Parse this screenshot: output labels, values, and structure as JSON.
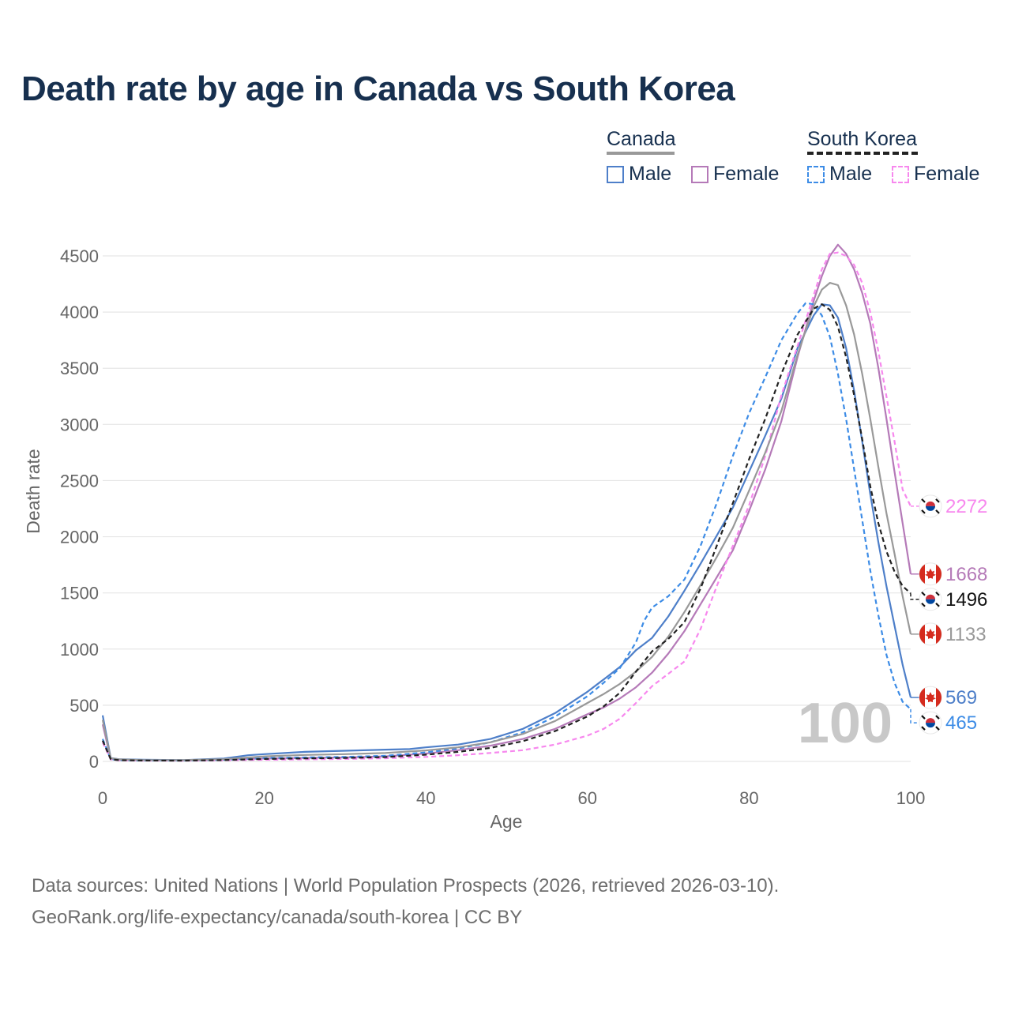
{
  "title": "Death rate by age in Canada vs South Korea",
  "legend": {
    "groups": [
      {
        "name": "Canada",
        "line_color": "#999999",
        "dashed": false
      },
      {
        "name": "South Korea",
        "line_color": "#222222",
        "dashed": true
      }
    ],
    "items": [
      {
        "label": "Male",
        "color": "#4e7fc9",
        "dashed": false
      },
      {
        "label": "Female",
        "color": "#b57ab8",
        "dashed": false
      },
      {
        "label": "Male",
        "color": "#3d8ce6",
        "dashed": true
      },
      {
        "label": "Female",
        "color": "#f788ee",
        "dashed": true
      }
    ]
  },
  "watermark": "100",
  "footer": {
    "line1": "Data sources: United Nations | World Population Prospects (2026, retrieved 2026-03-10).",
    "line2": "GeoRank.org/life-expectancy/canada/south-korea | CC BY"
  },
  "chart_data": {
    "type": "line",
    "xlabel": "Age",
    "ylabel": "Death rate",
    "xlim": [
      0,
      100
    ],
    "ylim": [
      0,
      4500
    ],
    "xticks": [
      "0",
      "20",
      "40",
      "60",
      "80",
      "100"
    ],
    "yticks": [
      "0",
      "500",
      "1000",
      "1500",
      "2000",
      "2500",
      "3000",
      "3500",
      "4000",
      "4500"
    ],
    "grid": true,
    "series": [
      {
        "name": "Canada Male",
        "color": "#4e7fc9",
        "dashed": false,
        "flag": "canada-flag",
        "end_label": "569",
        "points": [
          [
            0,
            410
          ],
          [
            1,
            30
          ],
          [
            2,
            20
          ],
          [
            5,
            15
          ],
          [
            10,
            12
          ],
          [
            15,
            25
          ],
          [
            18,
            55
          ],
          [
            20,
            65
          ],
          [
            25,
            85
          ],
          [
            30,
            95
          ],
          [
            35,
            105
          ],
          [
            38,
            110
          ],
          [
            40,
            125
          ],
          [
            44,
            150
          ],
          [
            48,
            200
          ],
          [
            52,
            290
          ],
          [
            56,
            430
          ],
          [
            60,
            620
          ],
          [
            62,
            730
          ],
          [
            64,
            840
          ],
          [
            66,
            990
          ],
          [
            68,
            1100
          ],
          [
            70,
            1290
          ],
          [
            72,
            1520
          ],
          [
            74,
            1760
          ],
          [
            76,
            2010
          ],
          [
            78,
            2260
          ],
          [
            80,
            2580
          ],
          [
            82,
            2900
          ],
          [
            84,
            3230
          ],
          [
            85,
            3450
          ],
          [
            86,
            3680
          ],
          [
            88,
            3970
          ],
          [
            89,
            4070
          ],
          [
            90,
            4060
          ],
          [
            91,
            3950
          ],
          [
            92,
            3680
          ],
          [
            93,
            3300
          ],
          [
            94,
            2850
          ],
          [
            95,
            2380
          ],
          [
            96,
            1950
          ],
          [
            97,
            1560
          ],
          [
            98,
            1210
          ],
          [
            99,
            860
          ],
          [
            100,
            569
          ]
        ]
      },
      {
        "name": "Canada Female",
        "color": "#b57ab8",
        "dashed": false,
        "flag": "canada-flag",
        "end_label": "1668",
        "points": [
          [
            0,
            330
          ],
          [
            1,
            25
          ],
          [
            2,
            15
          ],
          [
            5,
            10
          ],
          [
            10,
            10
          ],
          [
            15,
            15
          ],
          [
            20,
            25
          ],
          [
            25,
            30
          ],
          [
            30,
            35
          ],
          [
            35,
            45
          ],
          [
            40,
            70
          ],
          [
            44,
            100
          ],
          [
            48,
            140
          ],
          [
            52,
            200
          ],
          [
            56,
            290
          ],
          [
            60,
            420
          ],
          [
            62,
            480
          ],
          [
            64,
            560
          ],
          [
            66,
            660
          ],
          [
            68,
            790
          ],
          [
            70,
            960
          ],
          [
            72,
            1160
          ],
          [
            74,
            1400
          ],
          [
            76,
            1640
          ],
          [
            78,
            1880
          ],
          [
            80,
            2230
          ],
          [
            82,
            2600
          ],
          [
            84,
            3030
          ],
          [
            86,
            3600
          ],
          [
            88,
            4100
          ],
          [
            89,
            4320
          ],
          [
            90,
            4500
          ],
          [
            91,
            4600
          ],
          [
            92,
            4520
          ],
          [
            93,
            4380
          ],
          [
            94,
            4170
          ],
          [
            95,
            3900
          ],
          [
            96,
            3500
          ],
          [
            97,
            3050
          ],
          [
            98,
            2580
          ],
          [
            99,
            2120
          ],
          [
            100,
            1668
          ]
        ]
      },
      {
        "name": "South Korea Male",
        "color": "#3d8ce6",
        "dashed": true,
        "flag": "south-korea-flag",
        "end_label": "465",
        "points": [
          [
            0,
            200
          ],
          [
            1,
            20
          ],
          [
            2,
            12
          ],
          [
            5,
            8
          ],
          [
            10,
            8
          ],
          [
            15,
            15
          ],
          [
            20,
            30
          ],
          [
            25,
            35
          ],
          [
            30,
            40
          ],
          [
            35,
            50
          ],
          [
            40,
            80
          ],
          [
            44,
            115
          ],
          [
            48,
            170
          ],
          [
            52,
            260
          ],
          [
            56,
            400
          ],
          [
            60,
            580
          ],
          [
            62,
            700
          ],
          [
            64,
            830
          ],
          [
            66,
            1060
          ],
          [
            67,
            1250
          ],
          [
            68,
            1370
          ],
          [
            70,
            1470
          ],
          [
            72,
            1620
          ],
          [
            74,
            1920
          ],
          [
            76,
            2300
          ],
          [
            78,
            2720
          ],
          [
            80,
            3100
          ],
          [
            82,
            3420
          ],
          [
            84,
            3750
          ],
          [
            86,
            3990
          ],
          [
            87,
            4080
          ],
          [
            88,
            4070
          ],
          [
            89,
            3970
          ],
          [
            90,
            3780
          ],
          [
            91,
            3450
          ],
          [
            92,
            3050
          ],
          [
            93,
            2600
          ],
          [
            94,
            2150
          ],
          [
            95,
            1700
          ],
          [
            96,
            1300
          ],
          [
            97,
            950
          ],
          [
            98,
            700
          ],
          [
            99,
            530
          ],
          [
            100,
            465
          ]
        ]
      },
      {
        "name": "South Korea Female",
        "color": "#f788ee",
        "dashed": true,
        "flag": "south-korea-flag",
        "end_label": "2272",
        "points": [
          [
            0,
            170
          ],
          [
            1,
            18
          ],
          [
            2,
            10
          ],
          [
            5,
            7
          ],
          [
            10,
            6
          ],
          [
            15,
            10
          ],
          [
            20,
            15
          ],
          [
            25,
            18
          ],
          [
            30,
            22
          ],
          [
            35,
            28
          ],
          [
            40,
            40
          ],
          [
            44,
            55
          ],
          [
            48,
            75
          ],
          [
            52,
            100
          ],
          [
            56,
            150
          ],
          [
            60,
            230
          ],
          [
            62,
            290
          ],
          [
            64,
            380
          ],
          [
            66,
            520
          ],
          [
            68,
            670
          ],
          [
            70,
            780
          ],
          [
            72,
            890
          ],
          [
            74,
            1180
          ],
          [
            76,
            1560
          ],
          [
            78,
            1920
          ],
          [
            80,
            2280
          ],
          [
            82,
            2720
          ],
          [
            84,
            3260
          ],
          [
            86,
            3700
          ],
          [
            88,
            4150
          ],
          [
            89,
            4380
          ],
          [
            90,
            4520
          ],
          [
            91,
            4530
          ],
          [
            92,
            4500
          ],
          [
            93,
            4420
          ],
          [
            94,
            4260
          ],
          [
            95,
            4000
          ],
          [
            96,
            3650
          ],
          [
            97,
            3250
          ],
          [
            98,
            2850
          ],
          [
            99,
            2420
          ],
          [
            100,
            2272
          ]
        ]
      },
      {
        "name": "Canada Total",
        "color": "#999999",
        "dashed": false,
        "flag": "canada-flag",
        "end_label": "1133",
        "points": [
          [
            0,
            370
          ],
          [
            1,
            28
          ],
          [
            2,
            18
          ],
          [
            5,
            12
          ],
          [
            10,
            11
          ],
          [
            15,
            20
          ],
          [
            20,
            45
          ],
          [
            25,
            58
          ],
          [
            30,
            65
          ],
          [
            35,
            75
          ],
          [
            40,
            98
          ],
          [
            44,
            125
          ],
          [
            48,
            170
          ],
          [
            52,
            245
          ],
          [
            56,
            360
          ],
          [
            60,
            520
          ],
          [
            62,
            600
          ],
          [
            64,
            690
          ],
          [
            66,
            800
          ],
          [
            68,
            930
          ],
          [
            70,
            1110
          ],
          [
            72,
            1330
          ],
          [
            74,
            1570
          ],
          [
            76,
            1820
          ],
          [
            78,
            2080
          ],
          [
            80,
            2410
          ],
          [
            82,
            2750
          ],
          [
            84,
            3120
          ],
          [
            86,
            3620
          ],
          [
            88,
            4050
          ],
          [
            89,
            4200
          ],
          [
            90,
            4260
          ],
          [
            91,
            4240
          ],
          [
            92,
            4060
          ],
          [
            93,
            3800
          ],
          [
            94,
            3450
          ],
          [
            95,
            3050
          ],
          [
            96,
            2620
          ],
          [
            97,
            2210
          ],
          [
            98,
            1850
          ],
          [
            99,
            1470
          ],
          [
            100,
            1133
          ]
        ]
      },
      {
        "name": "South Korea Total",
        "color": "#222222",
        "dashed": true,
        "flag": "south-korea-flag",
        "end_label": "1496",
        "points": [
          [
            0,
            185
          ],
          [
            1,
            19
          ],
          [
            2,
            11
          ],
          [
            5,
            8
          ],
          [
            10,
            7
          ],
          [
            15,
            12
          ],
          [
            20,
            22
          ],
          [
            25,
            27
          ],
          [
            30,
            31
          ],
          [
            35,
            39
          ],
          [
            40,
            60
          ],
          [
            44,
            85
          ],
          [
            48,
            120
          ],
          [
            52,
            180
          ],
          [
            56,
            270
          ],
          [
            60,
            400
          ],
          [
            62,
            490
          ],
          [
            64,
            610
          ],
          [
            66,
            800
          ],
          [
            68,
            980
          ],
          [
            70,
            1090
          ],
          [
            72,
            1240
          ],
          [
            74,
            1540
          ],
          [
            76,
            1920
          ],
          [
            78,
            2300
          ],
          [
            80,
            2690
          ],
          [
            82,
            3050
          ],
          [
            84,
            3450
          ],
          [
            86,
            3800
          ],
          [
            88,
            4030
          ],
          [
            89,
            4070
          ],
          [
            90,
            4020
          ],
          [
            91,
            3870
          ],
          [
            92,
            3600
          ],
          [
            93,
            3260
          ],
          [
            94,
            2870
          ],
          [
            95,
            2450
          ],
          [
            96,
            2120
          ],
          [
            97,
            1870
          ],
          [
            98,
            1690
          ],
          [
            99,
            1560
          ],
          [
            100,
            1496
          ]
        ]
      }
    ]
  }
}
